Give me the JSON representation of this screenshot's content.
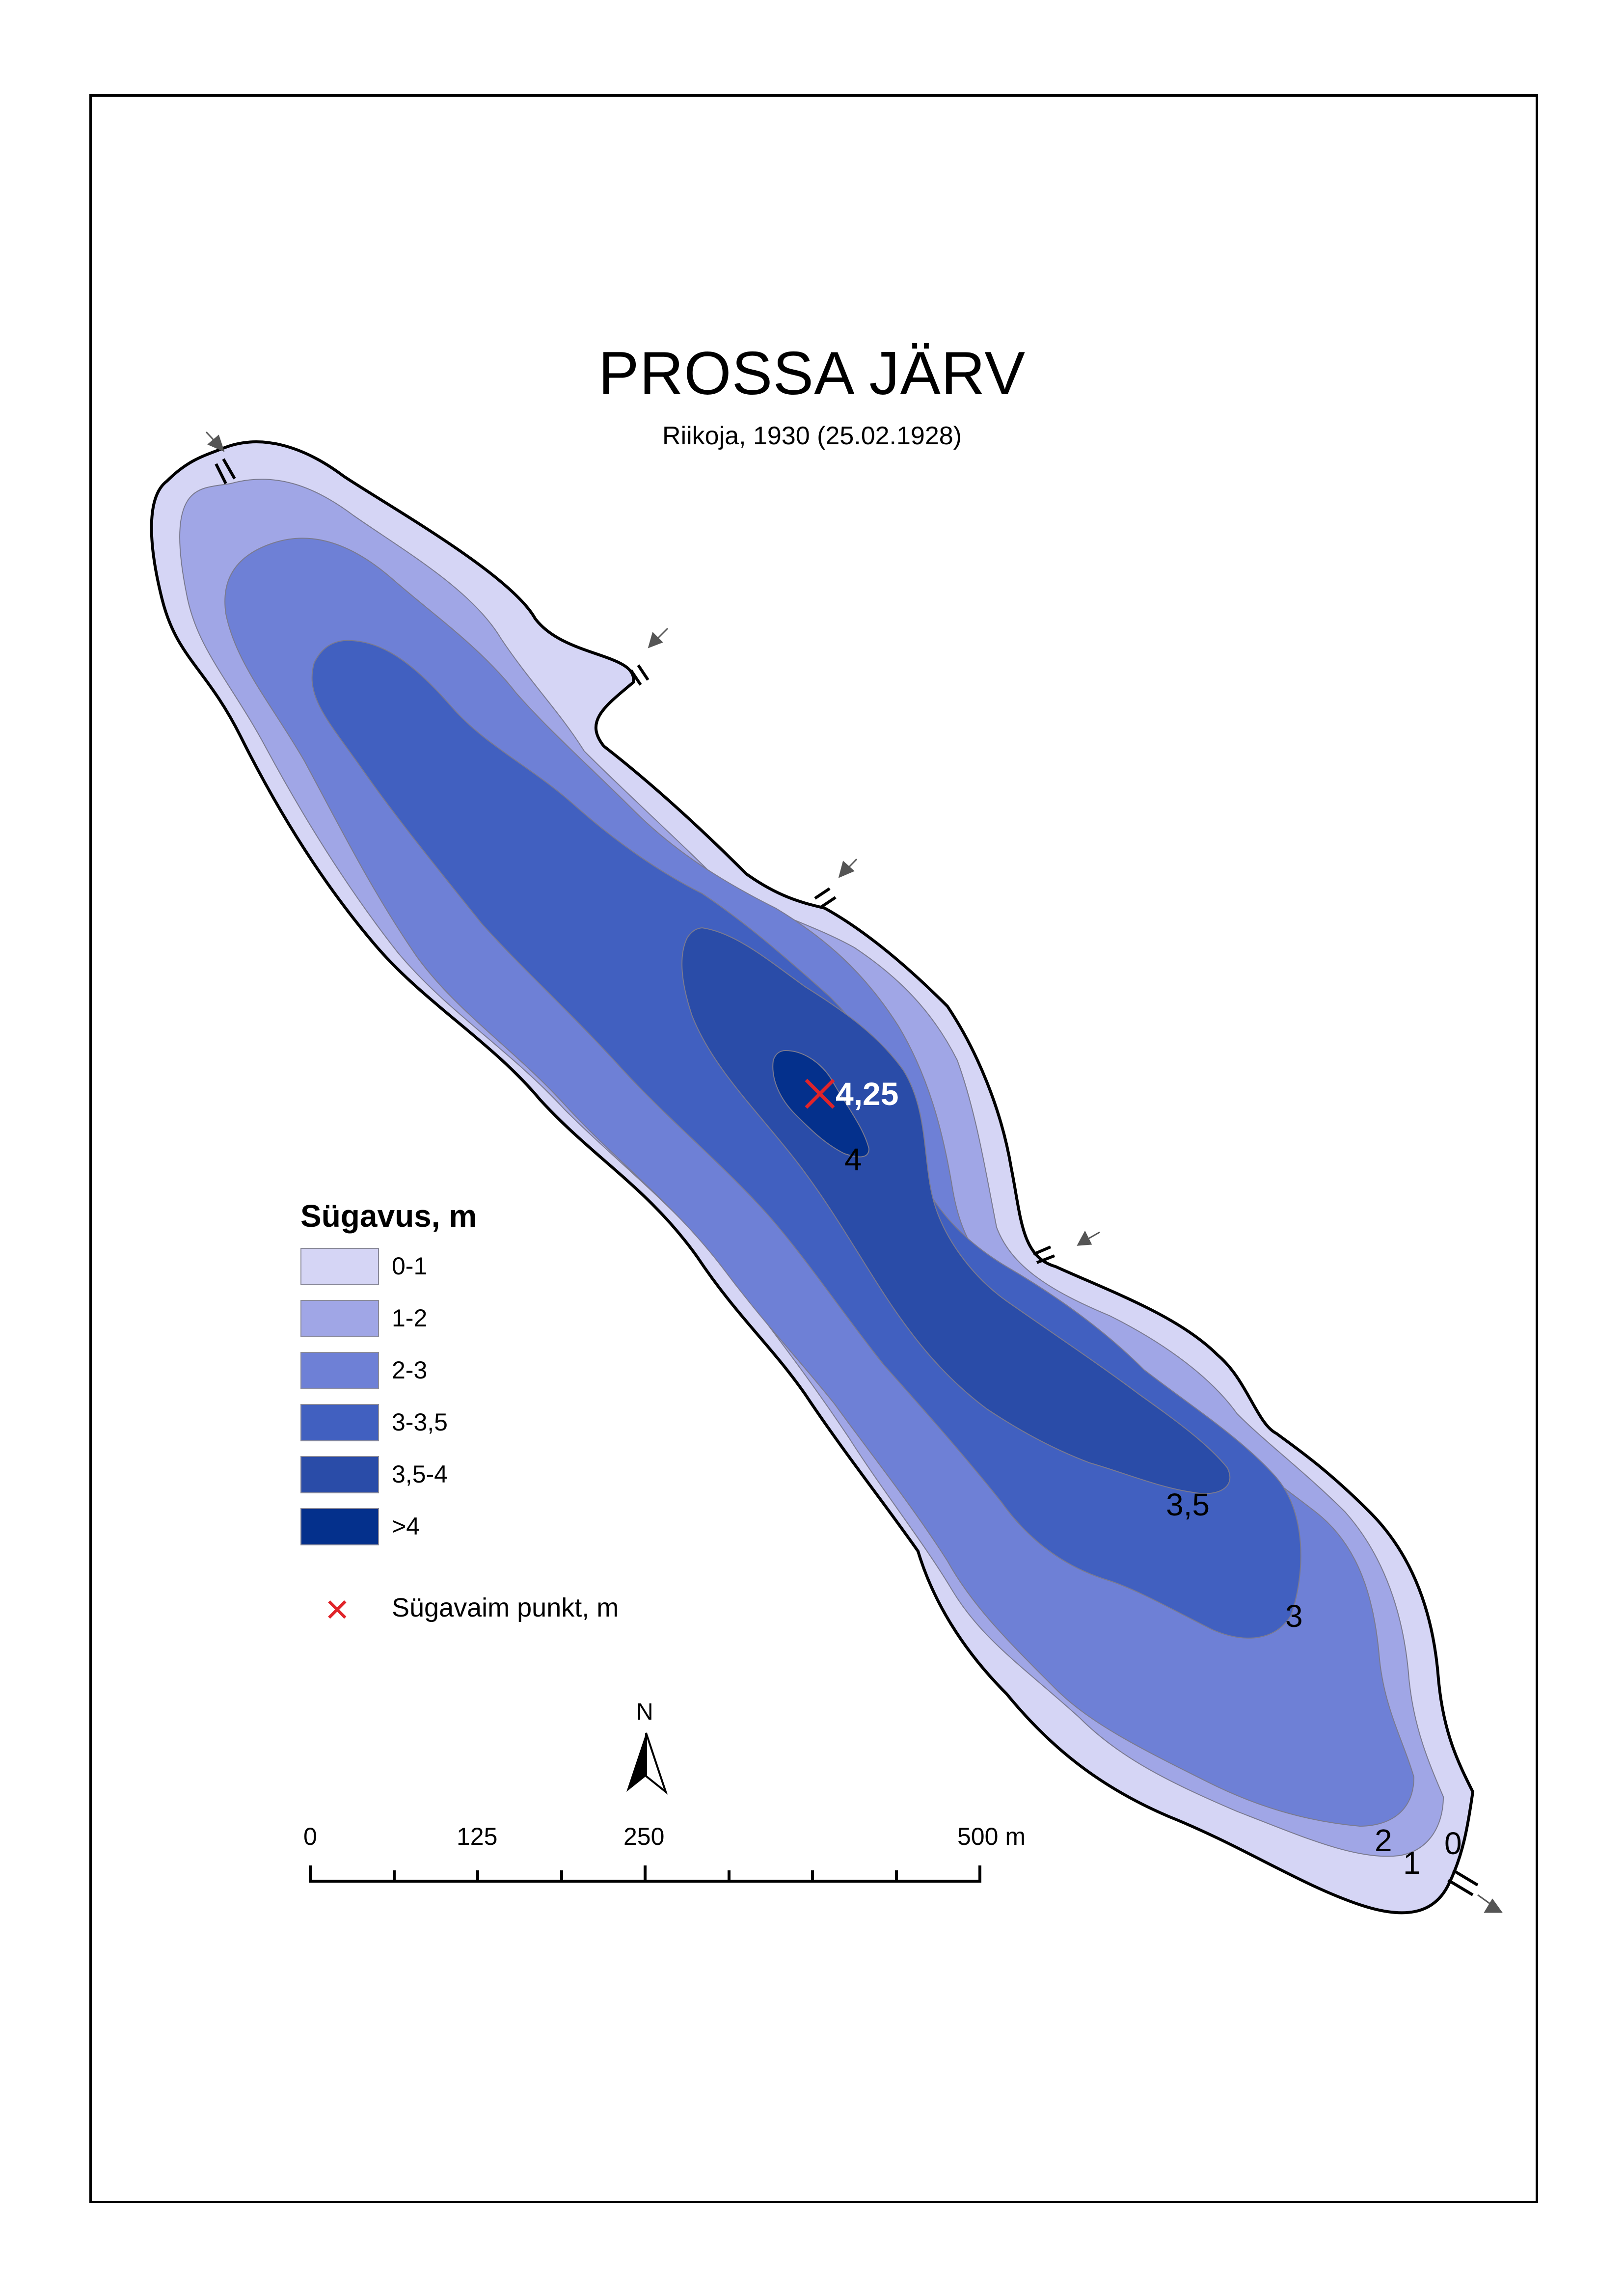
{
  "title": "PROSSA JÄRV",
  "subtitle": "Riikoja, 1930 (25.02.1928)",
  "legend": {
    "title": "Sügavus, m",
    "items": [
      {
        "label": "0-1",
        "color": "#d5d5f5"
      },
      {
        "label": "1-2",
        "color": "#a0a6e6"
      },
      {
        "label": "2-3",
        "color": "#6e80d6"
      },
      {
        "label": "3-3,5",
        "color": "#4160c0"
      },
      {
        "label": "3,5-4",
        "color": "#2a4ca8"
      },
      {
        "label": ">4",
        "color": "#04308c"
      }
    ],
    "deepest_point_label": "Sügavaim punkt, m",
    "deepest_point_color": "#e0242a"
  },
  "deepest_point": {
    "depth_label": "4,25"
  },
  "contour_labels": [
    "4",
    "3,5",
    "3",
    "2",
    "1",
    "0"
  ],
  "scale_bar": {
    "labels": [
      "0",
      "125",
      "250",
      "500 m"
    ]
  },
  "north_arrow": {
    "label": "N"
  }
}
